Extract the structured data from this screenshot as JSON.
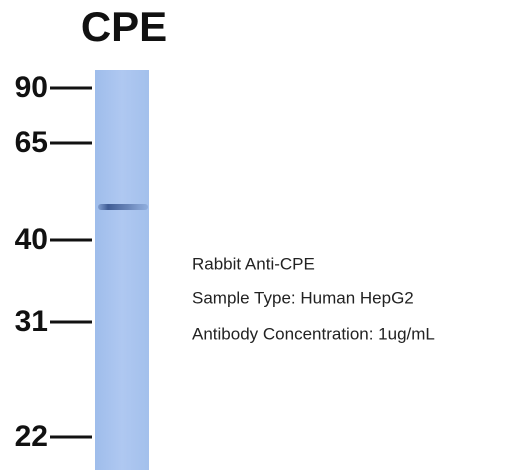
{
  "title": "CPE",
  "markers": [
    "90",
    "65",
    "40",
    "31",
    "22"
  ],
  "annotations": [
    "Rabbit Anti-CPE",
    "Sample Type: Human HepG2",
    "Antibody Concentration: 1ug/mL"
  ]
}
